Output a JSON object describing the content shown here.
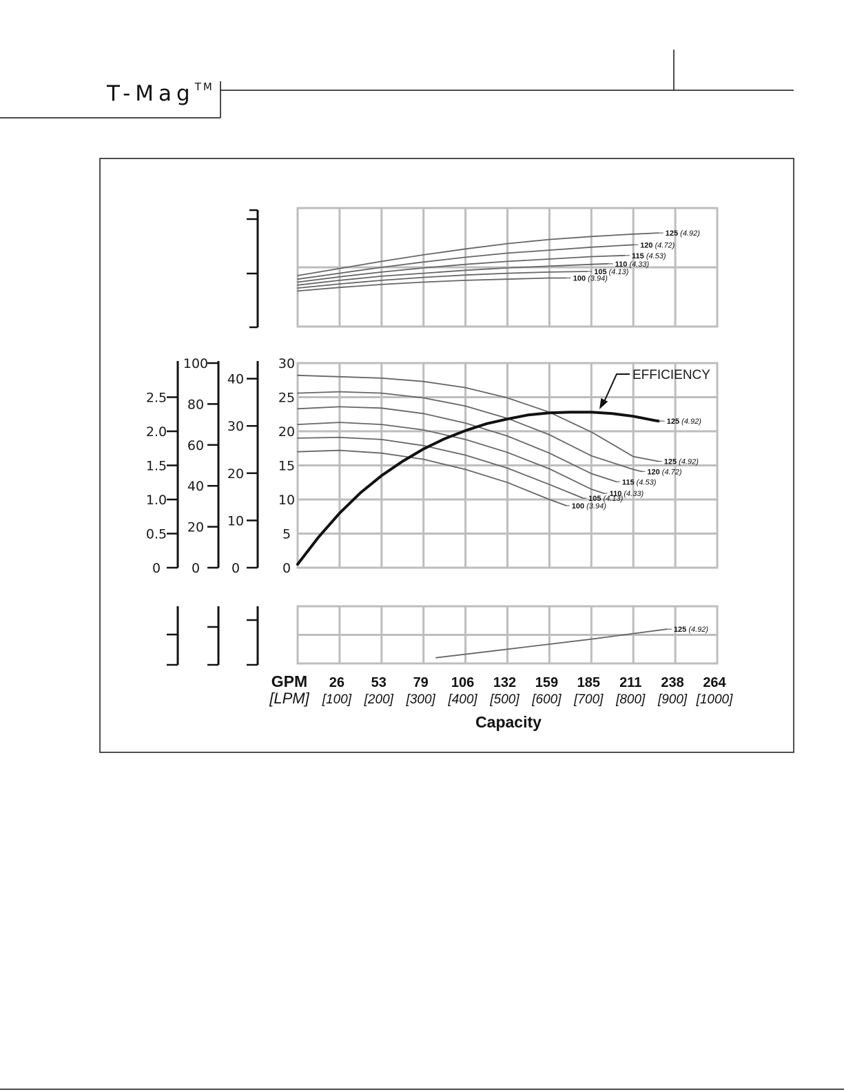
{
  "header": {
    "brand": "T-Mag",
    "trademark": "TM"
  },
  "colors": {
    "grid": "#bdbdbd",
    "curve": "#666666",
    "efficiency": "#111111",
    "frame": "#222222"
  },
  "chart_data": {
    "type": "line",
    "xlabel": "Capacity",
    "x_unit_primary": "GPM",
    "x_unit_secondary": "[LPM]",
    "x_ticks_gpm": [
      "26",
      "53",
      "79",
      "106",
      "132",
      "159",
      "185",
      "211",
      "238",
      "264"
    ],
    "x_ticks_lpm": [
      "[100]",
      "[200]",
      "[300]",
      "[400]",
      "[500]",
      "[600]",
      "[700]",
      "[800]",
      "[900]",
      "[1000]"
    ],
    "xlim_lpm": [
      0,
      1000
    ],
    "panels": {
      "top": {
        "series": [
          {
            "name": "125",
            "note": "(4.92)",
            "points": [
              [
                0,
                8.6
              ],
              [
                100,
                9.8
              ],
              [
                200,
                11.0
              ],
              [
                300,
                12.1
              ],
              [
                400,
                13.1
              ],
              [
                500,
                14.0
              ],
              [
                600,
                14.7
              ],
              [
                700,
                15.2
              ],
              [
                800,
                15.6
              ],
              [
                860,
                15.8
              ]
            ]
          },
          {
            "name": "120",
            "note": "(4.72)",
            "points": [
              [
                0,
                8.0
              ],
              [
                100,
                9.0
              ],
              [
                200,
                10.0
              ],
              [
                300,
                10.9
              ],
              [
                400,
                11.7
              ],
              [
                500,
                12.4
              ],
              [
                600,
                12.9
              ],
              [
                700,
                13.4
              ],
              [
                800,
                13.8
              ]
            ]
          },
          {
            "name": "115",
            "note": "(4.53)",
            "points": [
              [
                0,
                7.5
              ],
              [
                100,
                8.4
              ],
              [
                200,
                9.2
              ],
              [
                300,
                9.9
              ],
              [
                400,
                10.5
              ],
              [
                500,
                11.0
              ],
              [
                600,
                11.4
              ],
              [
                700,
                11.8
              ],
              [
                780,
                12.0
              ]
            ]
          },
          {
            "name": "110",
            "note": "(4.33)",
            "points": [
              [
                0,
                7.0
              ],
              [
                100,
                7.8
              ],
              [
                200,
                8.5
              ],
              [
                300,
                9.0
              ],
              [
                400,
                9.5
              ],
              [
                500,
                9.9
              ],
              [
                600,
                10.2
              ],
              [
                700,
                10.5
              ],
              [
                740,
                10.6
              ]
            ]
          },
          {
            "name": "105",
            "note": "(4.13)",
            "points": [
              [
                0,
                6.5
              ],
              [
                100,
                7.2
              ],
              [
                200,
                7.8
              ],
              [
                300,
                8.3
              ],
              [
                400,
                8.7
              ],
              [
                500,
                9.0
              ],
              [
                600,
                9.2
              ],
              [
                690,
                9.3
              ]
            ]
          },
          {
            "name": "100",
            "note": "(3.94)",
            "points": [
              [
                0,
                6.0
              ],
              [
                100,
                6.6
              ],
              [
                200,
                7.1
              ],
              [
                300,
                7.5
              ],
              [
                400,
                7.8
              ],
              [
                500,
                8.0
              ],
              [
                600,
                8.2
              ],
              [
                640,
                8.2
              ]
            ]
          }
        ]
      },
      "main": {
        "y_axes": [
          {
            "ticks": [
              "0",
              "0.5",
              "1.0",
              "1.5",
              "2.0",
              "2.5"
            ]
          },
          {
            "ticks": [
              "0",
              "20",
              "40",
              "60",
              "80",
              "100"
            ]
          },
          {
            "ticks": [
              "0",
              "10",
              "20",
              "30",
              "40"
            ]
          }
        ],
        "y_ticks": [
          "0",
          "5",
          "10",
          "15",
          "20",
          "25",
          "30"
        ],
        "ylim": [
          0,
          30
        ],
        "series": [
          {
            "name": "125",
            "note": "(4.92)",
            "points": [
              [
                0,
                28.2
              ],
              [
                100,
                28.0
              ],
              [
                200,
                27.8
              ],
              [
                300,
                27.3
              ],
              [
                400,
                26.4
              ],
              [
                500,
                24.9
              ],
              [
                600,
                22.8
              ],
              [
                700,
                19.9
              ],
              [
                800,
                16.3
              ],
              [
                860,
                15.6
              ]
            ]
          },
          {
            "name": "120",
            "note": "(4.72)",
            "points": [
              [
                0,
                25.6
              ],
              [
                100,
                25.8
              ],
              [
                200,
                25.6
              ],
              [
                300,
                24.9
              ],
              [
                400,
                23.7
              ],
              [
                500,
                21.9
              ],
              [
                600,
                19.5
              ],
              [
                700,
                16.4
              ],
              [
                800,
                14.4
              ],
              [
                820,
                14.1
              ]
            ]
          },
          {
            "name": "115",
            "note": "(4.53)",
            "points": [
              [
                0,
                23.3
              ],
              [
                100,
                23.6
              ],
              [
                200,
                23.4
              ],
              [
                300,
                22.6
              ],
              [
                400,
                21.2
              ],
              [
                500,
                19.3
              ],
              [
                600,
                16.8
              ],
              [
                700,
                13.8
              ],
              [
                760,
                12.6
              ]
            ]
          },
          {
            "name": "110",
            "note": "(4.33)",
            "points": [
              [
                0,
                21.0
              ],
              [
                100,
                21.3
              ],
              [
                200,
                21.0
              ],
              [
                300,
                20.2
              ],
              [
                400,
                18.8
              ],
              [
                500,
                16.9
              ],
              [
                600,
                14.5
              ],
              [
                700,
                11.5
              ],
              [
                730,
                10.9
              ]
            ]
          },
          {
            "name": "105",
            "note": "(4.13)",
            "points": [
              [
                0,
                19.0
              ],
              [
                100,
                19.1
              ],
              [
                200,
                18.8
              ],
              [
                300,
                17.9
              ],
              [
                400,
                16.5
              ],
              [
                500,
                14.6
              ],
              [
                600,
                12.2
              ],
              [
                680,
                10.2
              ]
            ]
          },
          {
            "name": "100",
            "note": "(3.94)",
            "points": [
              [
                0,
                17.0
              ],
              [
                100,
                17.2
              ],
              [
                200,
                16.8
              ],
              [
                300,
                15.9
              ],
              [
                400,
                14.4
              ],
              [
                500,
                12.5
              ],
              [
                600,
                10.0
              ],
              [
                640,
                9.1
              ]
            ]
          }
        ],
        "efficiency": {
          "label": "EFFICIENCY",
          "name": "125",
          "note": "(4.92)",
          "points": [
            [
              0,
              0.5
            ],
            [
              50,
              4.5
            ],
            [
              100,
              8.0
            ],
            [
              150,
              11.0
            ],
            [
              200,
              13.5
            ],
            [
              250,
              15.6
            ],
            [
              300,
              17.4
            ],
            [
              350,
              18.9
            ],
            [
              400,
              20.1
            ],
            [
              450,
              21.1
            ],
            [
              500,
              21.8
            ],
            [
              550,
              22.4
            ],
            [
              600,
              22.7
            ],
            [
              650,
              22.8
            ],
            [
              700,
              22.8
            ],
            [
              750,
              22.6
            ],
            [
              800,
              22.2
            ],
            [
              850,
              21.6
            ],
            [
              860,
              21.5
            ]
          ]
        }
      },
      "bottom": {
        "ylim": [
          0,
          4
        ],
        "series": [
          {
            "name": "125",
            "note": "(4.92)",
            "points": [
              [
                330,
                0.4
              ],
              [
                500,
                1.0
              ],
              [
                700,
                1.7
              ],
              [
                880,
                2.4
              ]
            ]
          }
        ]
      }
    }
  }
}
